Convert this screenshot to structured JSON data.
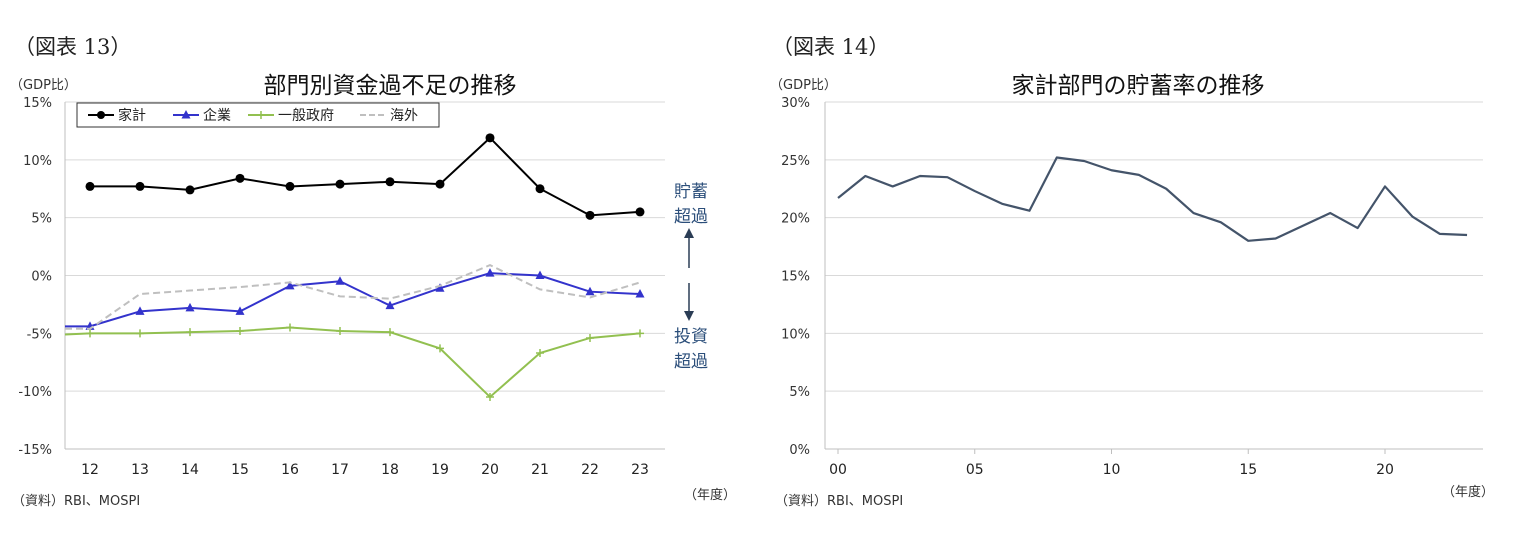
{
  "chart_data": [
    {
      "type": "line",
      "figure_label": "（図表 13）",
      "title": "部門別資金過不足の推移",
      "unit_label": "（GDP比）",
      "xlabel": "（年度）",
      "source": "（資料）RBI、MOSPI",
      "categories": [
        "12",
        "13",
        "14",
        "15",
        "16",
        "17",
        "18",
        "19",
        "20",
        "21",
        "22",
        "23"
      ],
      "ylim": [
        -15,
        15
      ],
      "yticks": [
        15,
        10,
        5,
        0,
        -5,
        -10,
        -15
      ],
      "ytick_labels": [
        "15%",
        "10%",
        "5%",
        "0%",
        "-5%",
        "-10%",
        "-15%"
      ],
      "grid": true,
      "legend_position": "top-left",
      "series": [
        {
          "name": "家計",
          "color": "#000000",
          "marker": "circle",
          "dashed": false,
          "x": [
            0,
            1,
            2,
            3,
            4,
            5,
            6,
            7,
            8,
            9,
            10,
            11
          ],
          "values": [
            7.7,
            7.7,
            7.4,
            8.4,
            7.7,
            7.9,
            8.1,
            7.9,
            11.9,
            7.5,
            5.2,
            5.5
          ]
        },
        {
          "name": "企業",
          "color": "#3333cc",
          "marker": "triangle",
          "dashed": false,
          "x": [
            -0.5,
            0,
            1,
            2,
            3,
            4,
            5,
            6,
            7,
            8,
            9,
            10,
            11
          ],
          "values": [
            -4.4,
            -4.4,
            -3.1,
            -2.8,
            -3.1,
            -0.9,
            -0.5,
            -2.6,
            -1.1,
            0.2,
            0.0,
            -1.4,
            -1.6
          ]
        },
        {
          "name": "一般政府",
          "color": "#92c050",
          "marker": "plus",
          "dashed": false,
          "x": [
            -0.5,
            0,
            1,
            2,
            3,
            4,
            5,
            6,
            7,
            8,
            9,
            10,
            11
          ],
          "values": [
            -5.1,
            -5.0,
            -5.0,
            -4.9,
            -4.8,
            -4.5,
            -4.8,
            -4.9,
            -6.3,
            -10.5,
            -6.7,
            -5.4,
            -5.0
          ]
        },
        {
          "name": "海外",
          "color": "#bfbfbf",
          "marker": "none",
          "dashed": true,
          "x": [
            -0.5,
            0,
            1,
            2,
            3,
            4,
            5,
            6,
            7,
            8,
            9,
            10,
            11
          ],
          "values": [
            -4.6,
            -4.6,
            -1.6,
            -1.3,
            -1.0,
            -0.6,
            -1.8,
            -2.0,
            -0.9,
            0.9,
            -1.2,
            -1.9,
            -0.6
          ]
        }
      ],
      "annotations": {
        "saving_excess": [
          "貯蓄",
          "超過"
        ],
        "investment_excess": [
          "投資",
          "超過"
        ]
      }
    },
    {
      "type": "line",
      "figure_label": "（図表 14）",
      "title": "家計部門の貯蓄率の推移",
      "unit_label": "（GDP比）",
      "xlabel": "（年度）",
      "source": "（資料）RBI、MOSPI",
      "x_ticks": [
        0,
        5,
        10,
        15,
        20
      ],
      "x_tick_labels": [
        "00",
        "05",
        "10",
        "15",
        "20"
      ],
      "xlim": [
        0,
        23
      ],
      "ylim": [
        0,
        30
      ],
      "yticks": [
        30,
        25,
        20,
        15,
        10,
        5,
        0
      ],
      "ytick_labels": [
        "30%",
        "25%",
        "20%",
        "15%",
        "10%",
        "5%",
        "0%"
      ],
      "grid": true,
      "series": [
        {
          "color": "#44546a",
          "x": [
            0,
            1,
            2,
            3,
            4,
            5,
            6,
            7,
            8,
            9,
            10,
            11,
            12,
            13,
            14,
            15,
            16,
            17,
            18,
            19,
            20,
            21,
            22,
            23
          ],
          "values": [
            21.7,
            23.6,
            22.7,
            23.6,
            23.5,
            22.3,
            21.2,
            20.6,
            25.2,
            24.9,
            24.1,
            23.7,
            22.5,
            20.4,
            19.6,
            18.0,
            18.2,
            19.3,
            20.4,
            19.1,
            22.7,
            20.1,
            18.6,
            18.5
          ]
        }
      ]
    }
  ]
}
